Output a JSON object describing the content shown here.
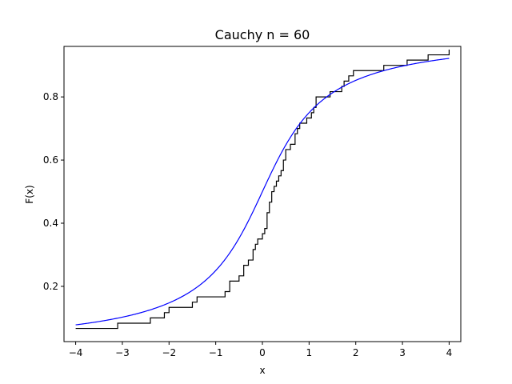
{
  "chart_data": {
    "type": "line",
    "title": "Cauchy n = 60",
    "xlabel": "x",
    "ylabel": "F(x)",
    "xlim": [
      -4.25,
      4.25
    ],
    "ylim": [
      0.025,
      0.96
    ],
    "xticks": [
      {
        "value": -4,
        "label": "−4"
      },
      {
        "value": -3,
        "label": "−3"
      },
      {
        "value": -2,
        "label": "−2"
      },
      {
        "value": -1,
        "label": "−1"
      },
      {
        "value": 0,
        "label": "0"
      },
      {
        "value": 1,
        "label": "1"
      },
      {
        "value": 2,
        "label": "2"
      },
      {
        "value": 3,
        "label": "3"
      },
      {
        "value": 4,
        "label": "4"
      }
    ],
    "yticks": [
      {
        "value": 0.2,
        "label": "0.2"
      },
      {
        "value": 0.4,
        "label": "0.4"
      },
      {
        "value": 0.6,
        "label": "0.6"
      },
      {
        "value": 0.8,
        "label": "0.8"
      }
    ],
    "grid": false,
    "series": [
      {
        "kind": "step",
        "color": "#000000",
        "points": [
          [
            -4.0,
            0.0667
          ],
          [
            -3.1,
            0.0667
          ],
          [
            -3.1,
            0.0833
          ],
          [
            -2.4,
            0.0833
          ],
          [
            -2.4,
            0.1
          ],
          [
            -2.1,
            0.1
          ],
          [
            -2.1,
            0.1167
          ],
          [
            -2.0,
            0.1167
          ],
          [
            -2.0,
            0.1333
          ],
          [
            -1.5,
            0.1333
          ],
          [
            -1.5,
            0.15
          ],
          [
            -1.4,
            0.15
          ],
          [
            -1.4,
            0.1667
          ],
          [
            -0.8,
            0.1667
          ],
          [
            -0.8,
            0.1833
          ],
          [
            -0.7,
            0.1833
          ],
          [
            -0.7,
            0.2167
          ],
          [
            -0.5,
            0.2167
          ],
          [
            -0.5,
            0.2333
          ],
          [
            -0.4,
            0.2333
          ],
          [
            -0.4,
            0.2667
          ],
          [
            -0.3,
            0.2667
          ],
          [
            -0.3,
            0.2833
          ],
          [
            -0.2,
            0.2833
          ],
          [
            -0.2,
            0.3167
          ],
          [
            -0.15,
            0.3167
          ],
          [
            -0.15,
            0.3333
          ],
          [
            -0.1,
            0.3333
          ],
          [
            -0.1,
            0.35
          ],
          [
            0.0,
            0.35
          ],
          [
            0.0,
            0.3667
          ],
          [
            0.05,
            0.3667
          ],
          [
            0.05,
            0.3833
          ],
          [
            0.1,
            0.3833
          ],
          [
            0.1,
            0.4333
          ],
          [
            0.15,
            0.4333
          ],
          [
            0.15,
            0.4667
          ],
          [
            0.2,
            0.4667
          ],
          [
            0.2,
            0.5
          ],
          [
            0.25,
            0.5
          ],
          [
            0.25,
            0.5167
          ],
          [
            0.3,
            0.5167
          ],
          [
            0.3,
            0.5333
          ],
          [
            0.35,
            0.5333
          ],
          [
            0.35,
            0.55
          ],
          [
            0.4,
            0.55
          ],
          [
            0.4,
            0.5667
          ],
          [
            0.45,
            0.5667
          ],
          [
            0.45,
            0.6
          ],
          [
            0.5,
            0.6
          ],
          [
            0.5,
            0.6333
          ],
          [
            0.6,
            0.6333
          ],
          [
            0.6,
            0.65
          ],
          [
            0.7,
            0.65
          ],
          [
            0.7,
            0.6833
          ],
          [
            0.75,
            0.6833
          ],
          [
            0.75,
            0.7
          ],
          [
            0.8,
            0.7
          ],
          [
            0.8,
            0.7167
          ],
          [
            0.95,
            0.7167
          ],
          [
            0.95,
            0.7333
          ],
          [
            1.05,
            0.7333
          ],
          [
            1.05,
            0.75
          ],
          [
            1.1,
            0.75
          ],
          [
            1.1,
            0.7667
          ],
          [
            1.15,
            0.7667
          ],
          [
            1.15,
            0.8
          ],
          [
            1.45,
            0.8
          ],
          [
            1.45,
            0.8167
          ],
          [
            1.7,
            0.8167
          ],
          [
            1.7,
            0.8333
          ],
          [
            1.75,
            0.8333
          ],
          [
            1.75,
            0.85
          ],
          [
            1.85,
            0.85
          ],
          [
            1.85,
            0.8667
          ],
          [
            1.95,
            0.8667
          ],
          [
            1.95,
            0.8833
          ],
          [
            2.6,
            0.8833
          ],
          [
            2.6,
            0.9
          ],
          [
            3.1,
            0.9
          ],
          [
            3.1,
            0.9167
          ],
          [
            3.55,
            0.9167
          ],
          [
            3.55,
            0.9333
          ],
          [
            4.0,
            0.9333
          ],
          [
            4.0,
            0.95
          ]
        ]
      },
      {
        "kind": "curve",
        "color": "#0000ff",
        "function": "cauchy_cdf",
        "x_range": [
          -4,
          4
        ]
      }
    ]
  }
}
